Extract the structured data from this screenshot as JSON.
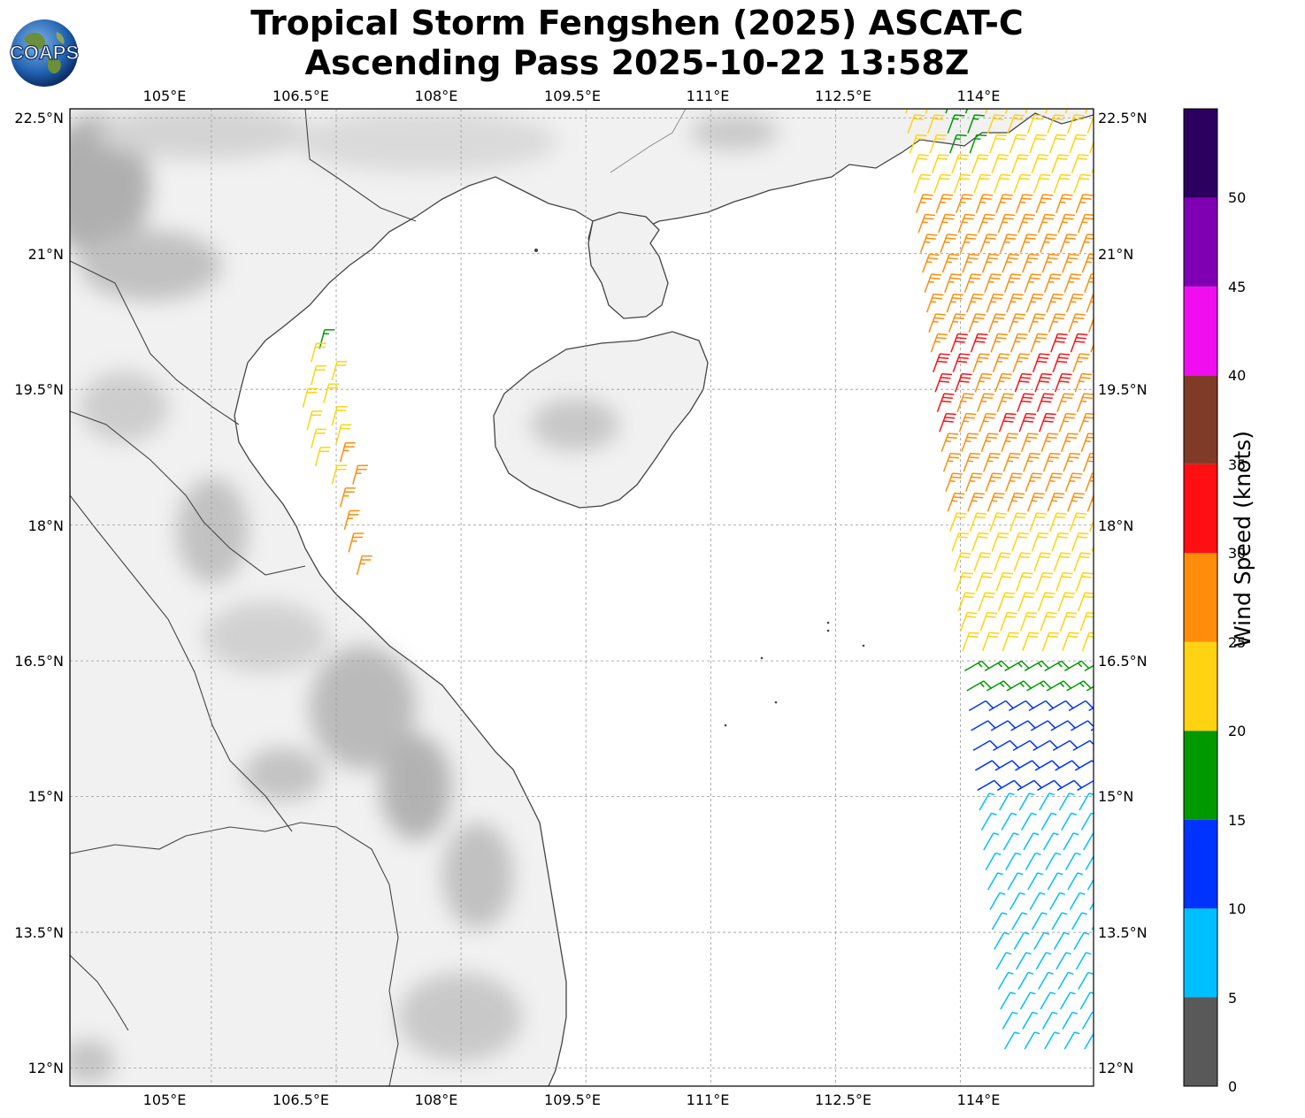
{
  "title": {
    "line1": "Tropical Storm Fengshen (2025) ASCAT-C",
    "line2": "Ascending Pass 2025-10-22 13:58Z"
  },
  "logo": {
    "text": "COAPS",
    "icon": "globe-logo-icon"
  },
  "map": {
    "lon_range": [
      103.3,
      115.6
    ],
    "lat_range": [
      11.8,
      22.6
    ],
    "lon_ticks": [
      "105°E",
      "106.5°E",
      "108°E",
      "109.5°E",
      "111°E",
      "112.5°E",
      "114°E"
    ],
    "lat_ticks": [
      "22.5°N",
      "21°N",
      "19.5°N",
      "18°N",
      "16.5°N",
      "15°N",
      "13.5°N",
      "12°N"
    ],
    "gridlines": true,
    "background": "grayscale topography over land, white ocean"
  },
  "colorbar": {
    "label": "Wind Speed (knots)",
    "ticks": [
      "0",
      "5",
      "10",
      "15",
      "20",
      "25",
      "30",
      "35",
      "40",
      "45",
      "50"
    ],
    "bins": [
      {
        "from": 0,
        "to": 5,
        "color": "#595959"
      },
      {
        "from": 5,
        "to": 10,
        "color": "#00bfff"
      },
      {
        "from": 10,
        "to": 15,
        "color": "#0033ff"
      },
      {
        "from": 15,
        "to": 20,
        "color": "#009900"
      },
      {
        "from": 20,
        "to": 25,
        "color": "#ffd311"
      },
      {
        "from": 25,
        "to": 30,
        "color": "#ff8c0a"
      },
      {
        "from": 30,
        "to": 35,
        "color": "#ff0f12"
      },
      {
        "from": 35,
        "to": 40,
        "color": "#803a28"
      },
      {
        "from": 40,
        "to": 45,
        "color": "#f00ef0"
      },
      {
        "from": 45,
        "to": 50,
        "color": "#7f00b2"
      },
      {
        "from": 50,
        "to": 55,
        "color": "#2c005e"
      }
    ]
  },
  "wind_barbs": {
    "description_units": "knots",
    "swath_west": [
      {
        "lat": 19.95,
        "lon": 106.3,
        "speed": 17
      },
      {
        "lat": 19.8,
        "lon": 106.2,
        "speed": 22
      },
      {
        "lat": 19.55,
        "lon": 106.2,
        "speed": 22
      },
      {
        "lat": 19.6,
        "lon": 106.45,
        "speed": 22
      },
      {
        "lat": 19.3,
        "lon": 106.1,
        "speed": 22
      },
      {
        "lat": 19.35,
        "lon": 106.35,
        "speed": 22
      },
      {
        "lat": 19.05,
        "lon": 106.15,
        "speed": 22
      },
      {
        "lat": 19.1,
        "lon": 106.45,
        "speed": 22
      },
      {
        "lat": 18.85,
        "lon": 106.2,
        "speed": 22
      },
      {
        "lat": 18.9,
        "lon": 106.5,
        "speed": 22
      },
      {
        "lat": 18.65,
        "lon": 106.25,
        "speed": 22
      },
      {
        "lat": 18.7,
        "lon": 106.55,
        "speed": 26
      },
      {
        "lat": 18.45,
        "lon": 106.45,
        "speed": 22
      },
      {
        "lat": 18.45,
        "lon": 106.7,
        "speed": 26
      },
      {
        "lat": 18.2,
        "lon": 106.55,
        "speed": 26
      },
      {
        "lat": 17.95,
        "lon": 106.6,
        "speed": 26
      },
      {
        "lat": 17.7,
        "lon": 106.65,
        "speed": 26
      },
      {
        "lat": 17.45,
        "lon": 106.75,
        "speed": 26
      }
    ],
    "swath_east_speed_bands": [
      {
        "lat_from": 21.5,
        "lat_to": 22.6,
        "speed": 22
      },
      {
        "lat_from": 20.0,
        "lat_to": 21.5,
        "speed": 27
      },
      {
        "lat_from": 19.0,
        "lat_to": 20.0,
        "speed": 32
      },
      {
        "lat_from": 18.0,
        "lat_to": 19.0,
        "speed": 27
      },
      {
        "lat_from": 16.6,
        "lat_to": 18.0,
        "speed": 22
      },
      {
        "lat_from": 16.0,
        "lat_to": 16.6,
        "speed": 17
      },
      {
        "lat_from": 15.0,
        "lat_to": 16.0,
        "speed": 12
      },
      {
        "lat_from": 12.0,
        "lat_to": 15.0,
        "speed": 7
      }
    ]
  }
}
